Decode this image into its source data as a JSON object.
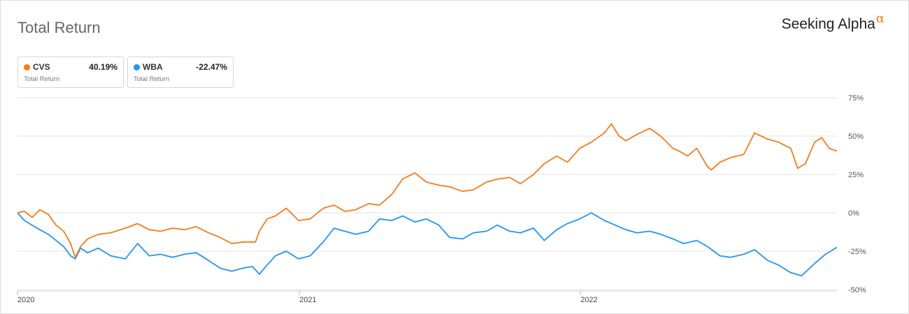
{
  "header": {
    "title": "Total Return",
    "brand_name": "Seeking Alpha",
    "brand_symbol": "α"
  },
  "legend": [
    {
      "name": "CVS",
      "value": "40.19%",
      "label": "Total Return",
      "color": "#f57c1f"
    },
    {
      "name": "WBA",
      "value": "-22.47%",
      "label": "Total Return",
      "color": "#2196f3"
    }
  ],
  "chart_data": {
    "type": "line",
    "title": "Total Return",
    "xlabel": "",
    "ylabel": "",
    "x_ticks": [
      "2020",
      "2021",
      "2022"
    ],
    "y_ticks": [
      "75%",
      "50%",
      "25%",
      "0%",
      "-25%",
      "-50%"
    ],
    "y_tick_values": [
      75,
      50,
      25,
      0,
      -25,
      -50
    ],
    "ylim": [
      -50,
      75
    ],
    "xlim": [
      "2020-01-01",
      "2022-11-30"
    ],
    "grid": true,
    "legend_position": "top-left",
    "series": [
      {
        "name": "CVS",
        "color": "#f57c1f",
        "points": [
          [
            "2020-01-01",
            0
          ],
          [
            "2020-01-10",
            1
          ],
          [
            "2020-01-20",
            -3
          ],
          [
            "2020-01-30",
            2
          ],
          [
            "2020-02-10",
            -1
          ],
          [
            "2020-02-20",
            -8
          ],
          [
            "2020-03-01",
            -12
          ],
          [
            "2020-03-10",
            -20
          ],
          [
            "2020-03-16",
            -29
          ],
          [
            "2020-03-23",
            -22
          ],
          [
            "2020-04-01",
            -17
          ],
          [
            "2020-04-15",
            -14
          ],
          [
            "2020-05-01",
            -13
          ],
          [
            "2020-05-20",
            -10
          ],
          [
            "2020-06-05",
            -7
          ],
          [
            "2020-06-20",
            -11
          ],
          [
            "2020-07-05",
            -12
          ],
          [
            "2020-07-20",
            -10
          ],
          [
            "2020-08-05",
            -11
          ],
          [
            "2020-08-20",
            -9
          ],
          [
            "2020-09-05",
            -13
          ],
          [
            "2020-09-20",
            -16
          ],
          [
            "2020-10-05",
            -20
          ],
          [
            "2020-10-20",
            -19
          ],
          [
            "2020-11-05",
            -19
          ],
          [
            "2020-11-10",
            -12
          ],
          [
            "2020-11-20",
            -4
          ],
          [
            "2020-12-01",
            -2
          ],
          [
            "2020-12-15",
            3
          ],
          [
            "2020-12-31",
            -5
          ],
          [
            "2021-01-15",
            -4
          ],
          [
            "2021-02-01",
            3
          ],
          [
            "2021-02-15",
            5
          ],
          [
            "2021-03-01",
            1
          ],
          [
            "2021-03-15",
            2
          ],
          [
            "2021-04-01",
            6
          ],
          [
            "2021-04-15",
            5
          ],
          [
            "2021-05-01",
            12
          ],
          [
            "2021-05-15",
            22
          ],
          [
            "2021-05-31",
            26
          ],
          [
            "2021-06-15",
            20
          ],
          [
            "2021-07-01",
            18
          ],
          [
            "2021-07-15",
            17
          ],
          [
            "2021-08-01",
            14
          ],
          [
            "2021-08-15",
            15
          ],
          [
            "2021-09-01",
            20
          ],
          [
            "2021-09-15",
            22
          ],
          [
            "2021-10-01",
            23
          ],
          [
            "2021-10-15",
            19
          ],
          [
            "2021-11-01",
            25
          ],
          [
            "2021-11-15",
            32
          ],
          [
            "2021-12-01",
            37
          ],
          [
            "2021-12-15",
            33
          ],
          [
            "2021-12-31",
            42
          ],
          [
            "2022-01-15",
            46
          ],
          [
            "2022-02-01",
            52
          ],
          [
            "2022-02-10",
            58
          ],
          [
            "2022-02-20",
            50
          ],
          [
            "2022-03-01",
            47
          ],
          [
            "2022-03-15",
            51
          ],
          [
            "2022-04-01",
            55
          ],
          [
            "2022-04-15",
            50
          ],
          [
            "2022-05-01",
            42
          ],
          [
            "2022-05-10",
            40
          ],
          [
            "2022-05-20",
            37
          ],
          [
            "2022-06-01",
            42
          ],
          [
            "2022-06-15",
            30
          ],
          [
            "2022-06-20",
            28
          ],
          [
            "2022-07-01",
            33
          ],
          [
            "2022-07-15",
            36
          ],
          [
            "2022-08-01",
            38
          ],
          [
            "2022-08-15",
            52
          ],
          [
            "2022-09-01",
            48
          ],
          [
            "2022-09-15",
            46
          ],
          [
            "2022-10-01",
            42
          ],
          [
            "2022-10-10",
            29
          ],
          [
            "2022-10-20",
            32
          ],
          [
            "2022-11-01",
            46
          ],
          [
            "2022-11-10",
            49
          ],
          [
            "2022-11-20",
            42
          ],
          [
            "2022-11-30",
            40.19
          ]
        ]
      },
      {
        "name": "WBA",
        "color": "#2196f3",
        "points": [
          [
            "2020-01-01",
            0
          ],
          [
            "2020-01-10",
            -5
          ],
          [
            "2020-01-20",
            -8
          ],
          [
            "2020-01-30",
            -11
          ],
          [
            "2020-02-10",
            -14
          ],
          [
            "2020-02-20",
            -18
          ],
          [
            "2020-03-01",
            -22
          ],
          [
            "2020-03-10",
            -28
          ],
          [
            "2020-03-16",
            -30
          ],
          [
            "2020-03-23",
            -23
          ],
          [
            "2020-04-01",
            -26
          ],
          [
            "2020-04-15",
            -23
          ],
          [
            "2020-05-01",
            -28
          ],
          [
            "2020-05-20",
            -30
          ],
          [
            "2020-06-05",
            -20
          ],
          [
            "2020-06-20",
            -28
          ],
          [
            "2020-07-05",
            -27
          ],
          [
            "2020-07-20",
            -29
          ],
          [
            "2020-08-05",
            -27
          ],
          [
            "2020-08-20",
            -26
          ],
          [
            "2020-09-05",
            -31
          ],
          [
            "2020-09-20",
            -36
          ],
          [
            "2020-10-05",
            -38
          ],
          [
            "2020-10-20",
            -36
          ],
          [
            "2020-11-01",
            -35
          ],
          [
            "2020-11-10",
            -40
          ],
          [
            "2020-11-20",
            -34
          ],
          [
            "2020-12-01",
            -28
          ],
          [
            "2020-12-15",
            -25
          ],
          [
            "2020-12-31",
            -30
          ],
          [
            "2021-01-15",
            -28
          ],
          [
            "2021-02-01",
            -19
          ],
          [
            "2021-02-15",
            -10
          ],
          [
            "2021-03-01",
            -12
          ],
          [
            "2021-03-15",
            -14
          ],
          [
            "2021-04-01",
            -12
          ],
          [
            "2021-04-15",
            -4
          ],
          [
            "2021-05-01",
            -5
          ],
          [
            "2021-05-15",
            -2
          ],
          [
            "2021-05-31",
            -6
          ],
          [
            "2021-06-15",
            -4
          ],
          [
            "2021-07-01",
            -8
          ],
          [
            "2021-07-15",
            -16
          ],
          [
            "2021-08-01",
            -17
          ],
          [
            "2021-08-15",
            -13
          ],
          [
            "2021-09-01",
            -12
          ],
          [
            "2021-09-15",
            -8
          ],
          [
            "2021-10-01",
            -12
          ],
          [
            "2021-10-15",
            -13
          ],
          [
            "2021-11-01",
            -10
          ],
          [
            "2021-11-15",
            -18
          ],
          [
            "2021-12-01",
            -11
          ],
          [
            "2021-12-15",
            -7
          ],
          [
            "2021-12-31",
            -4
          ],
          [
            "2022-01-15",
            0
          ],
          [
            "2022-02-01",
            -5
          ],
          [
            "2022-02-15",
            -8
          ],
          [
            "2022-03-01",
            -11
          ],
          [
            "2022-03-15",
            -13
          ],
          [
            "2022-04-01",
            -12
          ],
          [
            "2022-04-15",
            -14
          ],
          [
            "2022-05-01",
            -17
          ],
          [
            "2022-05-15",
            -20
          ],
          [
            "2022-06-01",
            -18
          ],
          [
            "2022-06-15",
            -22
          ],
          [
            "2022-07-01",
            -28
          ],
          [
            "2022-07-15",
            -29
          ],
          [
            "2022-08-01",
            -27
          ],
          [
            "2022-08-15",
            -24
          ],
          [
            "2022-09-01",
            -31
          ],
          [
            "2022-09-15",
            -34
          ],
          [
            "2022-10-01",
            -39
          ],
          [
            "2022-10-15",
            -41
          ],
          [
            "2022-11-01",
            -33
          ],
          [
            "2022-11-15",
            -27
          ],
          [
            "2022-11-30",
            -22.47
          ]
        ]
      }
    ]
  }
}
